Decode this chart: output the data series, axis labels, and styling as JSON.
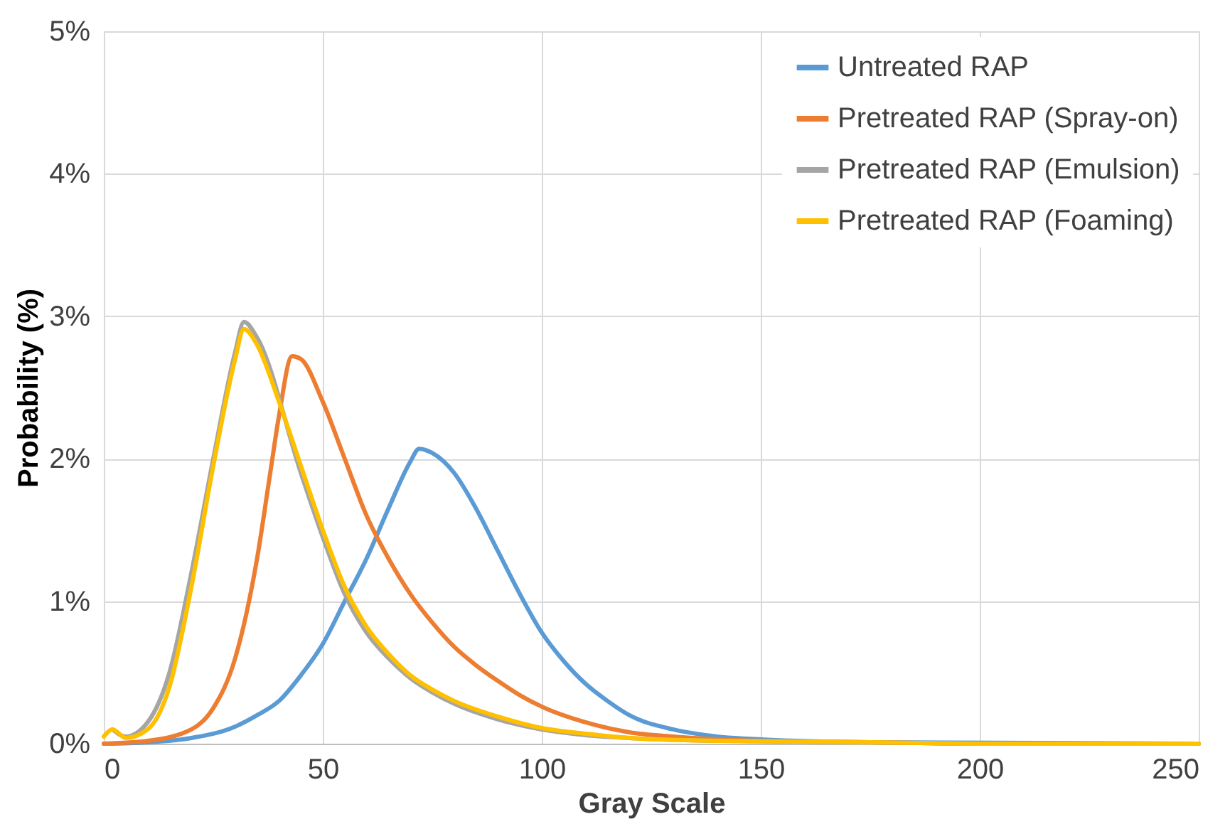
{
  "chart_data": {
    "type": "line",
    "xlabel": "Gray Scale",
    "ylabel": "Probability (%)",
    "xlim": [
      0,
      250
    ],
    "xticks": [
      0,
      50,
      100,
      150,
      200,
      250
    ],
    "ylim": [
      0,
      5
    ],
    "yticks": [
      {
        "value": 0,
        "label": "0%"
      },
      {
        "value": 1,
        "label": "1%"
      },
      {
        "value": 2,
        "label": "2%"
      },
      {
        "value": 3,
        "label": "3%"
      },
      {
        "value": 4,
        "label": "4%"
      },
      {
        "value": 5,
        "label": "5%"
      }
    ],
    "grid": true,
    "legend": "top right",
    "marker": "none",
    "line_style": "solid",
    "series": [
      {
        "name": "Untreated RAP",
        "color": "#5b9bd5",
        "x": [
          0,
          10,
          20,
          30,
          35,
          40,
          45,
          50,
          55,
          60,
          65,
          70,
          72,
          75,
          80,
          85,
          90,
          95,
          100,
          105,
          110,
          115,
          120,
          130,
          140,
          150,
          175,
          250
        ],
        "values": [
          0,
          0.01,
          0.04,
          0.12,
          0.2,
          0.3,
          0.48,
          0.7,
          1.0,
          1.3,
          1.65,
          1.98,
          2.07,
          2.04,
          1.9,
          1.65,
          1.35,
          1.05,
          0.78,
          0.58,
          0.42,
          0.3,
          0.2,
          0.1,
          0.05,
          0.03,
          0.01,
          0
        ]
      },
      {
        "name": "Pretreated RAP (Spray-on)",
        "color": "#ed7d31",
        "x": [
          0,
          10,
          20,
          25,
          30,
          35,
          38,
          40,
          43,
          45,
          50,
          55,
          60,
          65,
          70,
          75,
          80,
          85,
          90,
          95,
          100,
          110,
          120,
          130,
          150,
          175,
          200,
          250
        ],
        "values": [
          0,
          0.02,
          0.1,
          0.25,
          0.6,
          1.3,
          1.9,
          2.3,
          2.72,
          2.7,
          2.4,
          2.0,
          1.6,
          1.3,
          1.05,
          0.85,
          0.68,
          0.55,
          0.44,
          0.34,
          0.26,
          0.15,
          0.08,
          0.05,
          0.02,
          0.01,
          0,
          0
        ]
      },
      {
        "name": "Pretreated RAP (Emulsion)",
        "color": "#a5a5a5",
        "x": [
          2,
          5,
          10,
          15,
          20,
          25,
          30,
          32,
          35,
          45,
          50,
          55,
          60,
          65,
          70,
          75,
          80,
          90,
          100,
          110,
          120,
          140,
          175,
          200,
          250
        ],
        "values": [
          0.1,
          0.05,
          0.15,
          0.5,
          1.2,
          2.0,
          2.75,
          2.96,
          2.85,
          1.9,
          1.45,
          1.05,
          0.78,
          0.6,
          0.46,
          0.36,
          0.28,
          0.17,
          0.1,
          0.06,
          0.04,
          0.02,
          0.01,
          0,
          0
        ]
      },
      {
        "name": "Pretreated RAP (Foaming)",
        "color": "#ffc000",
        "x": [
          0,
          2,
          5,
          10,
          15,
          20,
          25,
          30,
          32,
          35,
          40,
          45,
          50,
          55,
          60,
          65,
          70,
          75,
          80,
          90,
          100,
          110,
          120,
          140,
          175,
          200,
          250
        ],
        "values": [
          0.05,
          0.1,
          0.04,
          0.1,
          0.4,
          1.1,
          1.95,
          2.7,
          2.91,
          2.8,
          2.4,
          1.95,
          1.5,
          1.1,
          0.82,
          0.63,
          0.48,
          0.38,
          0.3,
          0.19,
          0.11,
          0.07,
          0.04,
          0.02,
          0.01,
          0,
          0
        ]
      }
    ]
  }
}
